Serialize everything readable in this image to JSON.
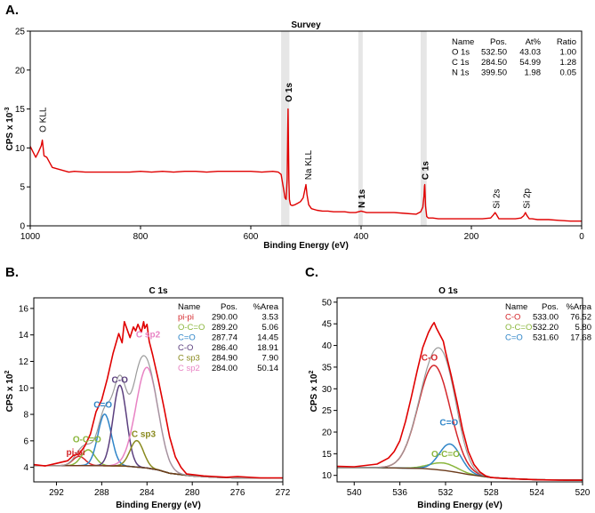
{
  "chart_data": [
    {
      "panel_label": "A.",
      "type": "line",
      "title": "Survey",
      "xlabel": "Binding Energy (eV)",
      "ylabel": "CPS x 10",
      "ylabel_exp": "-3",
      "xlim": [
        1000,
        0
      ],
      "ylim": [
        0,
        25
      ],
      "xticks": [
        1000,
        800,
        600,
        400,
        200,
        0
      ],
      "yticks": [
        0,
        5,
        10,
        15,
        20,
        25
      ],
      "grid": false,
      "line_color": "#e00000",
      "highlight_bands": [
        [
          545,
          530
        ],
        [
          405,
          397
        ],
        [
          292,
          281
        ]
      ],
      "series": [
        {
          "x": [
            1000,
            995,
            990,
            985,
            980,
            978,
            975,
            970,
            960,
            950,
            930,
            920,
            900,
            880,
            860,
            840,
            820,
            800,
            780,
            760,
            740,
            720,
            700,
            680,
            660,
            640,
            620,
            600,
            580,
            560,
            550,
            545,
            540,
            538,
            536,
            534,
            533,
            532.5,
            532,
            531,
            530,
            528,
            525,
            520,
            515,
            510,
            505,
            500,
            498,
            495,
            490,
            480,
            470,
            460,
            450,
            440,
            430,
            420,
            410,
            400,
            390,
            380,
            370,
            360,
            350,
            340,
            320,
            300,
            292,
            288,
            286,
            285,
            284.5,
            284,
            283,
            281,
            278,
            275,
            270,
            260,
            240,
            220,
            200,
            180,
            165,
            160,
            157,
            155,
            150,
            140,
            130,
            120,
            110,
            105,
            102,
            100,
            95,
            90,
            80,
            60,
            40,
            20,
            0
          ],
          "y": [
            10.2,
            9.5,
            8.8,
            9.5,
            10.3,
            11.0,
            9.0,
            8.8,
            7.5,
            7.3,
            6.9,
            7.0,
            6.9,
            6.9,
            6.9,
            6.9,
            6.9,
            7.0,
            6.9,
            7.0,
            6.9,
            7.0,
            7.0,
            6.9,
            7.0,
            7.0,
            7.0,
            7.0,
            6.9,
            7.0,
            6.9,
            6.6,
            4.5,
            3.6,
            3.4,
            6.0,
            12.0,
            15.0,
            12.0,
            6.0,
            3.4,
            2.7,
            2.6,
            2.7,
            2.9,
            3.1,
            3.6,
            5.3,
            4.0,
            2.7,
            2.2,
            2.0,
            1.9,
            1.9,
            1.8,
            1.8,
            1.8,
            1.7,
            1.7,
            1.9,
            1.7,
            1.7,
            1.7,
            1.7,
            1.7,
            1.7,
            1.6,
            1.5,
            1.8,
            2.4,
            3.8,
            5.1,
            5.3,
            4.4,
            2.5,
            1.2,
            1.0,
            1.0,
            1.0,
            0.9,
            0.9,
            0.9,
            0.9,
            0.9,
            1.0,
            1.4,
            1.7,
            1.5,
            0.9,
            0.9,
            0.9,
            0.9,
            1.0,
            1.3,
            1.7,
            1.4,
            0.9,
            0.9,
            0.8,
            0.8,
            0.7,
            0.6,
            0.6
          ]
        }
      ],
      "annotations": [
        {
          "text": "O KLL",
          "x": 978,
          "bold": false
        },
        {
          "text": "O 1s",
          "x": 532.5,
          "bold": true
        },
        {
          "text": "Na KLL",
          "x": 497,
          "bold": false
        },
        {
          "text": "N 1s",
          "x": 400,
          "bold": true
        },
        {
          "text": "C 1s",
          "x": 285,
          "bold": true
        },
        {
          "text": "Si 2s",
          "x": 156,
          "bold": false
        },
        {
          "text": "Si 2p",
          "x": 101,
          "bold": false
        }
      ],
      "table": {
        "headers": [
          "Name",
          "Pos.",
          "At%",
          "Ratio"
        ],
        "rows": [
          [
            "O 1s",
            "532.50",
            "43.03",
            "1.00"
          ],
          [
            "C 1s",
            "284.50",
            "54.99",
            "1.28"
          ],
          [
            "N 1s",
            "399.50",
            "1.98",
            "0.05"
          ]
        ]
      }
    },
    {
      "panel_label": "B.",
      "type": "line",
      "title": "C 1s",
      "xlabel": "Binding Energy (eV)",
      "ylabel": "CPS x 10",
      "ylabel_exp": "2",
      "xlim": [
        294,
        272
      ],
      "ylim": [
        2.9,
        16.8
      ],
      "xticks": [
        292,
        288,
        284,
        280,
        276,
        272
      ],
      "yticks": [
        4,
        6,
        8,
        10,
        12,
        14,
        16
      ],
      "grid": false,
      "envelope_color": "#e00000",
      "background_color": "#6b3a1a",
      "background": {
        "x": [
          294,
          290,
          288,
          286,
          284,
          283,
          282,
          280,
          278,
          276,
          272
        ],
        "y": [
          4.12,
          4.13,
          4.12,
          4.1,
          3.95,
          3.8,
          3.55,
          3.35,
          3.25,
          3.2,
          3.18
        ]
      },
      "measured": {
        "x": [
          294,
          293,
          292,
          291,
          290.5,
          290,
          289.5,
          289,
          288.5,
          288,
          287.5,
          287,
          286.5,
          286.2,
          286,
          285.5,
          285.2,
          285,
          284.8,
          284.5,
          284.3,
          284.2,
          284,
          283.8,
          283.5,
          283,
          282.5,
          282,
          281.5,
          281,
          280.5,
          280,
          279,
          278,
          277,
          276,
          274,
          272
        ],
        "y": [
          4.2,
          4.1,
          4.3,
          4.5,
          4.9,
          5.0,
          5.6,
          6.5,
          8.2,
          9.1,
          10.7,
          12.6,
          14.1,
          13.4,
          15.0,
          13.8,
          14.6,
          14.3,
          14.8,
          14.2,
          15.0,
          14.5,
          14.8,
          13.5,
          12.5,
          10.6,
          8.5,
          6.3,
          4.8,
          4.0,
          3.5,
          3.45,
          3.35,
          3.3,
          3.25,
          3.3,
          3.2,
          3.2
        ]
      },
      "components": [
        {
          "name": "pi-pi",
          "pos": 290.0,
          "area": 3.53,
          "height": 0.7,
          "fwhm": 1.3,
          "color": "#d4272b"
        },
        {
          "name": "O-C=O",
          "pos": 289.2,
          "area": 5.06,
          "height": 1.2,
          "fwhm": 1.4,
          "color": "#8ab63c"
        },
        {
          "name": "C=O",
          "pos": 287.74,
          "area": 14.45,
          "height": 3.9,
          "fwhm": 1.4,
          "color": "#2f85c8"
        },
        {
          "name": "C-O",
          "pos": 286.4,
          "area": 18.91,
          "height": 6.1,
          "fwhm": 1.4,
          "color": "#5b3f7e"
        },
        {
          "name": "C sp3",
          "pos": 284.9,
          "area": 7.9,
          "height": 2.0,
          "fwhm": 1.4,
          "color": "#8a8a1f"
        },
        {
          "name": "C sp2",
          "pos": 284.0,
          "area": 50.14,
          "height": 7.6,
          "fwhm": 2.3,
          "color": "#e883c4"
        }
      ],
      "component_labels": [
        {
          "text": "pi-pi",
          "x": 290.3,
          "y": 4.9,
          "color": "#d4272b"
        },
        {
          "text": "O-C=O",
          "x": 289.3,
          "y": 5.9,
          "color": "#8ab63c"
        },
        {
          "text": "C=O",
          "x": 287.9,
          "y": 8.5,
          "color": "#2f85c8"
        },
        {
          "text": "C-O",
          "x": 286.4,
          "y": 10.4,
          "color": "#5b3f7e"
        },
        {
          "text": "C sp3",
          "x": 284.3,
          "y": 6.3,
          "color": "#8a8a1f"
        },
        {
          "text": "C sp2",
          "x": 283.9,
          "y": 13.8,
          "color": "#e883c4"
        }
      ],
      "table": {
        "headers": [
          "Name",
          "Pos.",
          "%Area"
        ],
        "rows": [
          [
            "pi-pi",
            "290.00",
            "3.53"
          ],
          [
            "O-C=O",
            "289.20",
            "5.06"
          ],
          [
            "C=O",
            "287.74",
            "14.45"
          ],
          [
            "C-O",
            "286.40",
            "18.91"
          ],
          [
            "C sp3",
            "284.90",
            "7.90"
          ],
          [
            "C sp2",
            "284.00",
            "50.14"
          ]
        ]
      }
    },
    {
      "panel_label": "C.",
      "type": "line",
      "title": "O 1s",
      "xlabel": "Binding Energy (eV)",
      "ylabel": "CPS x 10",
      "ylabel_exp": "2",
      "xlim": [
        541.5,
        520
      ],
      "ylim": [
        8.5,
        51
      ],
      "xticks": [
        540,
        536,
        532,
        528,
        524,
        520
      ],
      "yticks": [
        10,
        15,
        20,
        25,
        30,
        35,
        40,
        45,
        50
      ],
      "grid": false,
      "envelope_color": "#e00000",
      "background_color": "#6b3a1a",
      "background": {
        "x": [
          541.5,
          538,
          536,
          534,
          533,
          532,
          531,
          530,
          528,
          526,
          524,
          520
        ],
        "y": [
          11.8,
          11.8,
          11.7,
          11.6,
          11.4,
          11.1,
          10.7,
          10.2,
          9.5,
          9.2,
          9.0,
          8.9
        ]
      },
      "measured": {
        "x": [
          541.5,
          540,
          539,
          538,
          537,
          536.5,
          536,
          535.5,
          535,
          534.5,
          534,
          533.5,
          533.2,
          533,
          532.8,
          532.5,
          532.2,
          532,
          531.5,
          531,
          530.5,
          530,
          529.5,
          529,
          528.5,
          528,
          527,
          526,
          525,
          524,
          522,
          520
        ],
        "y": [
          12.1,
          12.0,
          12.3,
          12.6,
          14.0,
          15.5,
          18.0,
          22.5,
          28.0,
          34.0,
          39.5,
          43.0,
          44.5,
          45.3,
          44.0,
          42.5,
          41.0,
          38.5,
          33.0,
          27.0,
          20.5,
          15.5,
          12.5,
          10.8,
          9.9,
          9.5,
          9.3,
          9.2,
          9.1,
          9.0,
          8.9,
          8.9
        ]
      },
      "components": [
        {
          "name": "C-O",
          "pos": 533.0,
          "area": 76.52,
          "height": 24.0,
          "fwhm": 3.3,
          "color": "#d4272b"
        },
        {
          "name": "O-C=O",
          "pos": 532.2,
          "area": 5.8,
          "height": 1.7,
          "fwhm": 2.8,
          "color": "#8ab63c"
        },
        {
          "name": "C=O",
          "pos": 531.6,
          "area": 17.68,
          "height": 6.3,
          "fwhm": 2.2,
          "color": "#2f85c8"
        }
      ],
      "component_labels": [
        {
          "text": "C-O",
          "x": 533.4,
          "y": 36.5,
          "color": "#d4272b"
        },
        {
          "text": "C=O",
          "x": 531.7,
          "y": 21.5,
          "color": "#2f85c8"
        },
        {
          "text": "O-C=O",
          "x": 532.0,
          "y": 14.2,
          "color": "#8ab63c"
        }
      ],
      "table": {
        "headers": [
          "Name",
          "Pos.",
          "%Area"
        ],
        "rows": [
          [
            "C-O",
            "533.00",
            "76.52"
          ],
          [
            "O-C=O",
            "532.20",
            "5.80"
          ],
          [
            "C=O",
            "531.60",
            "17.68"
          ]
        ]
      }
    }
  ]
}
